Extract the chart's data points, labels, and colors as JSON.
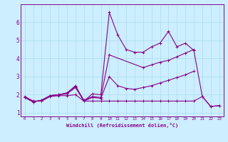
{
  "background_color": "#cceeff",
  "grid_color": "#aaddee",
  "line_color": "#880088",
  "xlabel": "Windchill (Refroidissement éolien,°C)",
  "xlim": [
    -0.5,
    23.5
  ],
  "ylim": [
    0.8,
    7.0
  ],
  "yticks": [
    1,
    2,
    3,
    4,
    5,
    6
  ],
  "xticks": [
    0,
    1,
    2,
    3,
    4,
    5,
    6,
    7,
    8,
    9,
    10,
    11,
    12,
    13,
    14,
    15,
    16,
    17,
    18,
    19,
    20,
    21,
    22,
    23
  ],
  "line1_x": [
    0,
    1,
    2,
    3,
    4,
    5,
    6,
    7,
    8,
    9,
    10,
    11,
    12,
    13,
    14,
    15,
    16,
    17,
    18,
    19,
    20,
    21,
    22,
    23
  ],
  "line1_y": [
    1.85,
    1.65,
    1.65,
    1.95,
    2.0,
    2.1,
    2.5,
    1.65,
    2.05,
    2.0,
    6.55,
    5.3,
    4.5,
    4.35,
    4.35,
    4.65,
    4.85,
    5.5,
    4.65,
    4.85,
    4.45,
    1.9,
    1.35,
    1.4
  ],
  "line2_x": [
    0,
    1,
    2,
    3,
    4,
    5,
    6,
    7,
    8,
    9,
    10,
    14,
    15,
    16,
    17,
    18,
    19,
    20
  ],
  "line2_y": [
    1.85,
    1.6,
    1.7,
    1.95,
    2.0,
    2.1,
    2.45,
    1.7,
    1.9,
    1.85,
    4.2,
    3.5,
    3.65,
    3.8,
    3.9,
    4.1,
    4.3,
    4.5
  ],
  "line3_x": [
    0,
    1,
    2,
    3,
    4,
    5,
    6,
    7,
    8,
    9,
    10,
    11,
    12,
    13,
    14,
    15,
    16,
    17,
    18,
    19,
    20
  ],
  "line3_y": [
    1.85,
    1.6,
    1.7,
    1.95,
    2.0,
    2.05,
    2.4,
    1.65,
    1.85,
    1.8,
    3.0,
    2.5,
    2.35,
    2.3,
    2.4,
    2.5,
    2.65,
    2.8,
    2.95,
    3.1,
    3.3
  ],
  "line4_x": [
    0,
    1,
    2,
    3,
    4,
    5,
    6,
    7,
    8,
    9,
    10,
    11,
    12,
    13,
    14,
    15,
    16,
    17,
    18,
    19,
    20,
    21,
    22,
    23
  ],
  "line4_y": [
    1.9,
    1.65,
    1.65,
    1.9,
    1.95,
    1.95,
    2.0,
    1.65,
    1.65,
    1.65,
    1.65,
    1.65,
    1.65,
    1.65,
    1.65,
    1.65,
    1.65,
    1.65,
    1.65,
    1.65,
    1.65,
    1.9,
    1.35,
    1.4
  ]
}
